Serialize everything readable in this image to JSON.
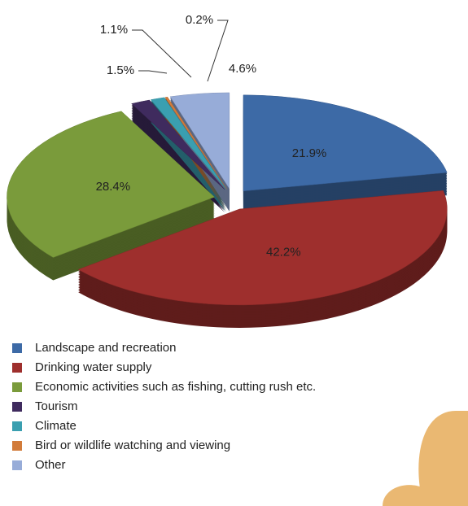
{
  "chart_data": {
    "type": "pie",
    "categories": [
      "Landscape and recreation",
      "Drinking water supply",
      "Economic activities such as fishing, cutting rush etc.",
      "Tourism",
      "Climate",
      "Bird or wildlife watching and viewing",
      "Other"
    ],
    "values": [
      21.9,
      42.2,
      28.4,
      1.5,
      1.1,
      0.2,
      4.6
    ],
    "value_labels": [
      "21.9%",
      "42.2%",
      "28.4%",
      "1.5%",
      "1.1%",
      "0.2%",
      "4.6%"
    ],
    "colors": [
      "#3d6aa6",
      "#9e2f2d",
      "#7a9b3b",
      "#3f2b5e",
      "#3a9fb0",
      "#d27b3a",
      "#97acd8"
    ],
    "legend": "bottom-left"
  }
}
